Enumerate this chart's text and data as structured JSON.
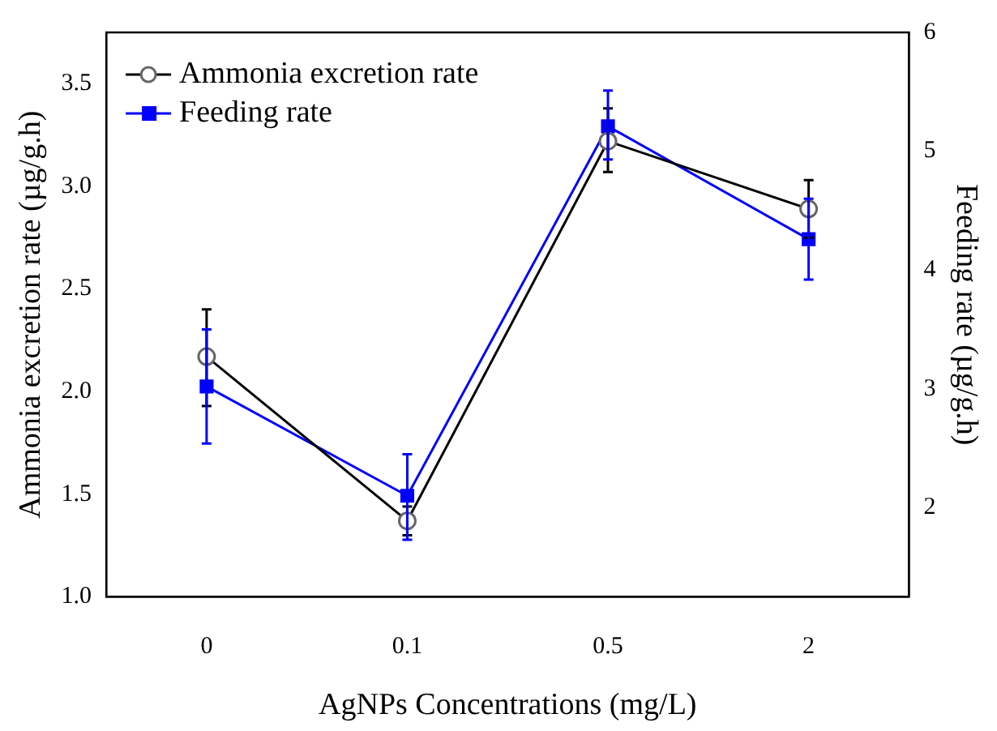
{
  "chart_data": {
    "type": "line",
    "xlabel": "AgNPs Concentrations (mg/L)",
    "ylabel": "Ammonia excretion rate (µg/g.h)",
    "y2label": "Feeding rate (µg/g.h)",
    "categories": [
      "0",
      "0.1",
      "0.5",
      "2"
    ],
    "series": [
      {
        "name": "Ammonia excretion rate",
        "color": "#000000",
        "marker": "circle",
        "values": [
          2.17,
          1.37,
          3.22,
          2.89
        ],
        "errors": [
          [
            1.93,
            2.4
          ],
          [
            1.3,
            1.44
          ],
          [
            3.07,
            3.38
          ],
          [
            2.75,
            3.03
          ]
        ]
      },
      {
        "name": "Feeding rate",
        "color": "#0000ff",
        "marker": "square",
        "axis": "y2",
        "values": [
          3.02,
          2.1,
          5.21,
          4.26
        ],
        "errors": [
          [
            2.54,
            3.5
          ],
          [
            1.73,
            2.45
          ],
          [
            4.93,
            5.51
          ],
          [
            3.92,
            4.6
          ]
        ]
      }
    ],
    "ylim": [
      1,
      3.75
    ],
    "yticks": [
      {
        "value": 1,
        "label": "1.0"
      },
      {
        "value": 1.5,
        "label": "1.5"
      },
      {
        "value": 2,
        "label": "2.0"
      },
      {
        "value": 2.5,
        "label": "2.5"
      },
      {
        "value": 3,
        "label": "3.0"
      },
      {
        "value": 3.5,
        "label": "3.5"
      }
    ],
    "y2lim": [
      1.25,
      6
    ],
    "y2ticks": [
      2,
      3,
      4,
      5,
      6
    ],
    "legend": "top left",
    "grid": false
  }
}
